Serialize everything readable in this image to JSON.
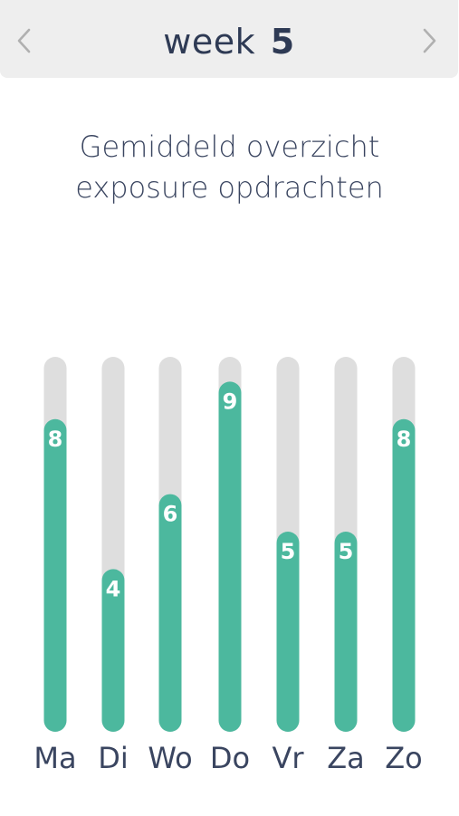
{
  "header": {
    "week_word": "week",
    "week_number": "5",
    "prev_icon": "chevron-left-icon",
    "next_icon": "chevron-right-icon"
  },
  "chart_title_line1": "Gemiddeld overzicht",
  "chart_title_line2": "exposure opdrachten",
  "colors": {
    "bar_fill": "#4cb89e",
    "bar_track": "#dedede",
    "header_bg": "#eeeeee",
    "text": "#2e3a54",
    "arrow": "#b0b0b0"
  },
  "chart_data": {
    "type": "bar",
    "title": "Gemiddeld overzicht exposure opdrachten",
    "categories": [
      "Ma",
      "Di",
      "Wo",
      "Do",
      "Vr",
      "Za",
      "Zo"
    ],
    "values": [
      8,
      4,
      6,
      9,
      5,
      5,
      8
    ],
    "ylim": [
      0,
      10
    ],
    "grid": false,
    "data_labels": true
  }
}
